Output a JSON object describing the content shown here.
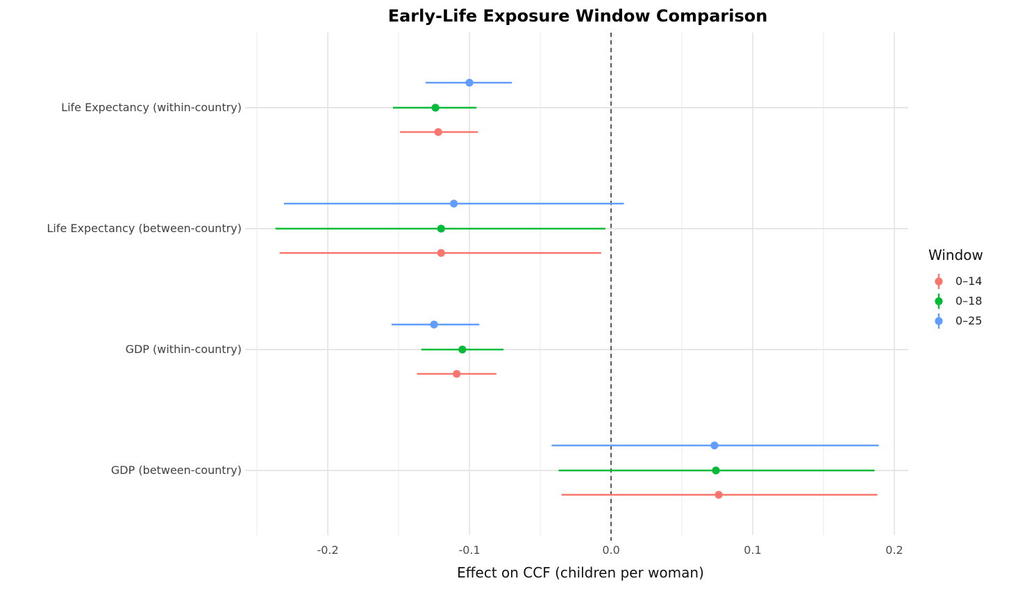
{
  "title": "Early-Life Exposure Window Comparison",
  "chart_data": {
    "type": "pointrange_forest",
    "title": "Early-Life Exposure Window Comparison",
    "xlabel": "Effect on CCF (children per woman)",
    "ylabel": "",
    "categories": [
      "Life Expectancy (within-country)",
      "Life Expectancy (between-country)",
      "GDP (within-country)",
      "GDP (between-country)"
    ],
    "x_ticks": {
      "values": [
        -0.2,
        -0.1,
        0.0,
        0.1,
        0.2
      ],
      "labels": [
        "-0.2",
        "-0.1",
        "0.0",
        "0.1",
        "0.2"
      ]
    },
    "x_minor_ticks": [
      -0.25,
      -0.15,
      -0.05,
      0.05,
      0.15
    ],
    "xlim": [
      -0.2525,
      0.2098
    ],
    "grid": true,
    "zero_line": {
      "x": 0.0,
      "style": "dashed",
      "color": "#555555"
    },
    "legend": {
      "title": "Window",
      "position": "right",
      "entries": [
        {
          "label": "0–14",
          "color": "#F8766D"
        },
        {
          "label": "0–18",
          "color": "#00BA38"
        },
        {
          "label": "0–25",
          "color": "#619CFF"
        }
      ]
    },
    "series": [
      {
        "name": "0–14",
        "color": "#F8766D",
        "dodge_offset": 35,
        "points": [
          {
            "category": "Life Expectancy (within-country)",
            "estimate": -0.122,
            "ci_low": -0.149,
            "ci_high": -0.094
          },
          {
            "category": "Life Expectancy (between-country)",
            "estimate": -0.12,
            "ci_low": -0.234,
            "ci_high": -0.007
          },
          {
            "category": "GDP (within-country)",
            "estimate": -0.109,
            "ci_low": -0.137,
            "ci_high": -0.081
          },
          {
            "category": "GDP (between-country)",
            "estimate": 0.076,
            "ci_low": -0.035,
            "ci_high": 0.188
          }
        ]
      },
      {
        "name": "0–18",
        "color": "#00BA38",
        "dodge_offset": 0,
        "points": [
          {
            "category": "Life Expectancy (within-country)",
            "estimate": -0.124,
            "ci_low": -0.154,
            "ci_high": -0.095
          },
          {
            "category": "Life Expectancy (between-country)",
            "estimate": -0.12,
            "ci_low": -0.237,
            "ci_high": -0.004
          },
          {
            "category": "GDP (within-country)",
            "estimate": -0.105,
            "ci_low": -0.134,
            "ci_high": -0.076
          },
          {
            "category": "GDP (between-country)",
            "estimate": 0.074,
            "ci_low": -0.037,
            "ci_high": 0.186
          }
        ]
      },
      {
        "name": "0–25",
        "color": "#619CFF",
        "dodge_offset": -36,
        "points": [
          {
            "category": "Life Expectancy (within-country)",
            "estimate": -0.1,
            "ci_low": -0.131,
            "ci_high": -0.07
          },
          {
            "category": "Life Expectancy (between-country)",
            "estimate": -0.111,
            "ci_low": -0.231,
            "ci_high": 0.009
          },
          {
            "category": "GDP (within-country)",
            "estimate": -0.125,
            "ci_low": -0.155,
            "ci_high": -0.093
          },
          {
            "category": "GDP (between-country)",
            "estimate": 0.073,
            "ci_low": -0.042,
            "ci_high": 0.189
          }
        ]
      }
    ]
  },
  "colors": {
    "background": "#ffffff",
    "grid_major": "#e3e3e3",
    "grid_minor": "#ededed",
    "zero_line": "#555555",
    "series_red": "#F8766D",
    "series_green": "#00BA38",
    "series_blue": "#619CFF"
  }
}
